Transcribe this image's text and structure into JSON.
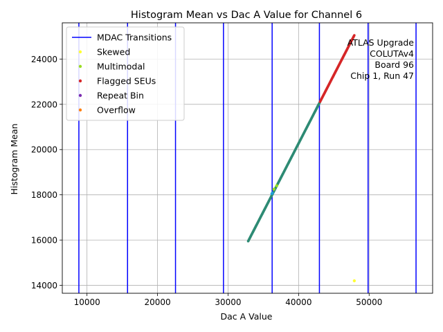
{
  "chart_data": {
    "type": "scatter",
    "title": "Histogram Mean vs Dac A Value for Channel 6",
    "xlabel": "Dac A Value",
    "ylabel": "Histogram Mean",
    "xlim": [
      6500,
      59000
    ],
    "ylim": [
      13650,
      25600
    ],
    "xticks": [
      10000,
      20000,
      30000,
      40000,
      50000
    ],
    "xtick_labels": [
      "10000",
      "20000",
      "30000",
      "40000",
      "50000"
    ],
    "yticks": [
      14000,
      16000,
      18000,
      20000,
      22000,
      24000
    ],
    "ytick_labels": [
      "14000",
      "16000",
      "18000",
      "20000",
      "22000",
      "24000"
    ],
    "grid": true,
    "legend_position": "top-left",
    "mdac_transitions": {
      "name": "MDAC Transitions",
      "color": "#0000ff",
      "x": [
        8850,
        15750,
        22550,
        29350,
        36250,
        42950,
        49850,
        56650
      ]
    },
    "main_series": {
      "color_low": "#2e8b74",
      "color_high": "#d62728",
      "color_switch_x": 43000,
      "x_range": [
        32850,
        47900
      ],
      "y_range": [
        15950,
        25050
      ],
      "n_points": 400
    },
    "series": [
      {
        "name": "Skewed",
        "color": "#ffff33",
        "points": [
          [
            47900,
            14200
          ]
        ]
      },
      {
        "name": "Multimodal",
        "color": "#99dd22",
        "points": [
          [
            36900,
            18400
          ],
          [
            36500,
            18250
          ]
        ]
      },
      {
        "name": "Flagged SEUs",
        "color": "#d62728",
        "points": []
      },
      {
        "name": "Repeat Bin",
        "color": "#7b2cb0",
        "points": []
      },
      {
        "name": "Overflow",
        "color": "#ff7f0e",
        "points": []
      }
    ],
    "extra_points": [
      {
        "color": "#1f9fd6",
        "points": [
          [
            36200,
            18050
          ],
          [
            36300,
            18080
          ]
        ]
      }
    ],
    "annotation": [
      "ATLAS Upgrade",
      "COLUTAv4",
      "Board 96",
      "Chip 1, Run 47"
    ]
  }
}
